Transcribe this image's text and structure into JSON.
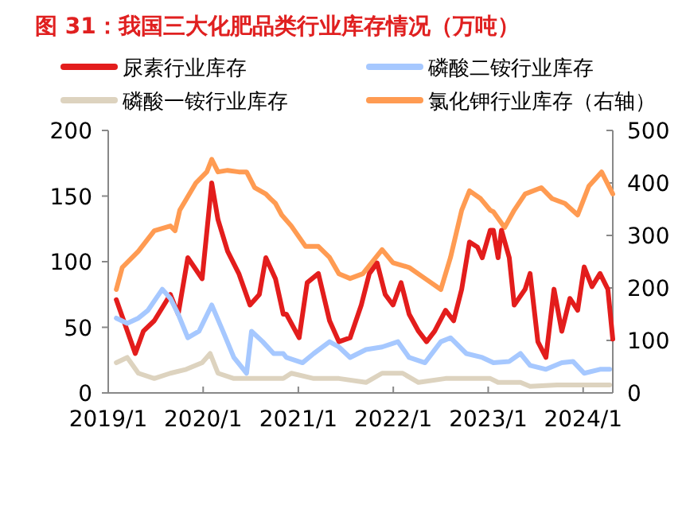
{
  "chart_data": {
    "type": "line",
    "title": "图 31：我国三大化肥品类行业库存情况（万吨）",
    "legend": "top",
    "xlim": [
      "2019-01-01",
      "2024-04-24"
    ],
    "xticks": [
      {
        "value": "2019-01-01",
        "label": "2019/1"
      },
      {
        "value": "2020-01-01",
        "label": "2020/1"
      },
      {
        "value": "2021-01-01",
        "label": "2021/1"
      },
      {
        "value": "2022-01-01",
        "label": "2022/1"
      },
      {
        "value": "2023-01-01",
        "label": "2023/1"
      },
      {
        "value": "2024-01-01",
        "label": "2024/1"
      }
    ],
    "ylim": [
      0,
      200
    ],
    "yticks": [
      0,
      50,
      100,
      150,
      200
    ],
    "y2lim": [
      0,
      500
    ],
    "y2ticks": [
      0,
      100,
      200,
      300,
      400,
      500
    ],
    "series": [
      {
        "name": "尿素行业库存",
        "color": "#e31d1c",
        "x": [
          "2019-02-01",
          "2019-04-15",
          "2019-05-16",
          "2019-06-27",
          "2019-08-28",
          "2019-09-27",
          "2019-11-03",
          "2019-12-28",
          "2020-02-03",
          "2020-02-27",
          "2020-04-04",
          "2020-05-17",
          "2020-06-29",
          "2020-08-04",
          "2020-08-29",
          "2020-10-05",
          "2020-11-04",
          "2020-11-16",
          "2021-01-04",
          "2021-02-04",
          "2021-03-19",
          "2021-05-01",
          "2021-06-06",
          "2021-07-19",
          "2021-08-31",
          "2021-10-01",
          "2021-10-31",
          "2021-12-01",
          "2021-12-31",
          "2022-01-31",
          "2022-03-03",
          "2022-04-08",
          "2022-05-09",
          "2022-06-09",
          "2022-07-21",
          "2022-08-21",
          "2022-09-21",
          "2022-10-21",
          "2022-11-21",
          "2022-12-09",
          "2023-01-09",
          "2023-01-21",
          "2023-02-08",
          "2023-02-21",
          "2023-03-23",
          "2023-04-11",
          "2023-05-23",
          "2023-06-11",
          "2023-07-11",
          "2023-08-11",
          "2023-09-11",
          "2023-10-11",
          "2023-11-11",
          "2023-12-11",
          "2024-01-05",
          "2024-02-04",
          "2024-03-06",
          "2024-04-05",
          "2024-04-24"
        ],
        "values": [
          71,
          30,
          47,
          55,
          75,
          60,
          103,
          87,
          160,
          132,
          108,
          91,
          67,
          75,
          103,
          87,
          60,
          60,
          42,
          84,
          91,
          55,
          39,
          42,
          67,
          91,
          99,
          75,
          67,
          84,
          60,
          47,
          39,
          47,
          63,
          55,
          79,
          115,
          111,
          103,
          124,
          124,
          103,
          124,
          103,
          67,
          79,
          91,
          39,
          27,
          79,
          47,
          72,
          63,
          96,
          81,
          91,
          79,
          41
        ]
      },
      {
        "name": "磷酸二铵行业库存",
        "color": "#a6c8ff",
        "x": [
          "2019-02-01",
          "2019-03-15",
          "2019-04-27",
          "2019-06-03",
          "2019-07-28",
          "2019-08-28",
          "2019-09-27",
          "2019-11-03",
          "2019-12-16",
          "2020-02-03",
          "2020-03-17",
          "2020-04-28",
          "2020-06-16",
          "2020-07-05",
          "2020-08-17",
          "2020-09-28",
          "2020-11-04",
          "2020-11-16",
          "2021-01-17",
          "2021-03-01",
          "2021-05-01",
          "2021-06-06",
          "2021-07-19",
          "2021-09-18",
          "2021-11-19",
          "2022-01-19",
          "2022-03-03",
          "2022-05-03",
          "2022-07-03",
          "2022-08-09",
          "2022-10-09",
          "2022-12-09",
          "2023-01-21",
          "2023-03-23",
          "2023-05-05",
          "2023-06-11",
          "2023-08-11",
          "2023-10-11",
          "2023-11-23",
          "2024-01-05",
          "2024-03-06",
          "2024-04-12"
        ],
        "values": [
          57,
          53,
          57,
          63,
          79,
          72,
          60,
          42,
          47,
          67,
          47,
          27,
          15,
          47,
          39,
          30,
          30,
          27,
          23,
          30,
          39,
          35,
          27,
          33,
          35,
          39,
          27,
          23,
          39,
          42,
          30,
          27,
          23,
          24,
          30,
          21,
          18,
          23,
          24,
          15,
          18,
          18
        ]
      },
      {
        "name": "磷酸一铵行业库存",
        "color": "#ddd3bf",
        "x": [
          "2019-02-01",
          "2019-03-15",
          "2019-04-27",
          "2019-06-27",
          "2019-08-28",
          "2019-10-28",
          "2019-12-28",
          "2020-01-28",
          "2020-02-27",
          "2020-04-28",
          "2020-08-29",
          "2020-11-04",
          "2020-12-05",
          "2021-03-01",
          "2021-06-06",
          "2021-09-18",
          "2021-11-19",
          "2022-02-06",
          "2022-04-08",
          "2022-07-21",
          "2022-11-02",
          "2023-01-09",
          "2023-02-08",
          "2023-05-05",
          "2023-06-11",
          "2023-09-23",
          "2024-01-05",
          "2024-04-12"
        ],
        "values": [
          23,
          27,
          15,
          11,
          15,
          18,
          23,
          30,
          15,
          11,
          11,
          11,
          15,
          11,
          11,
          8,
          15,
          15,
          8,
          11,
          11,
          11,
          8,
          8,
          5,
          6,
          6,
          6
        ]
      },
      {
        "name": "氯化钾行业库存（右轴）",
        "color": "#ff9b52",
        "axis": "y2",
        "x": [
          "2019-02-01",
          "2019-02-24",
          "2019-04-27",
          "2019-06-27",
          "2019-08-28",
          "2019-09-15",
          "2019-10-03",
          "2019-12-04",
          "2020-01-15",
          "2020-02-03",
          "2020-02-27",
          "2020-04-04",
          "2020-05-17",
          "2020-06-16",
          "2020-07-17",
          "2020-08-29",
          "2020-09-16",
          "2020-10-05",
          "2020-10-29",
          "2020-12-05",
          "2021-01-29",
          "2021-03-19",
          "2021-05-01",
          "2021-06-06",
          "2021-07-19",
          "2021-09-06",
          "2021-11-19",
          "2021-12-31",
          "2022-03-03",
          "2022-05-03",
          "2022-07-03",
          "2022-08-09",
          "2022-09-21",
          "2022-10-21",
          "2022-12-03",
          "2023-01-09",
          "2023-01-21",
          "2023-03-05",
          "2023-04-11",
          "2023-05-23",
          "2023-07-24",
          "2023-09-04",
          "2023-10-23",
          "2023-12-11",
          "2024-01-23",
          "2024-03-12",
          "2024-04-24"
        ],
        "values": [
          197,
          239,
          270,
          309,
          318,
          309,
          348,
          400,
          421,
          445,
          421,
          424,
          421,
          421,
          391,
          379,
          370,
          361,
          339,
          318,
          279,
          279,
          258,
          227,
          218,
          227,
          273,
          248,
          239,
          218,
          197,
          258,
          348,
          385,
          370,
          348,
          345,
          315,
          348,
          379,
          391,
          370,
          361,
          339,
          394,
          421,
          379
        ]
      }
    ]
  }
}
